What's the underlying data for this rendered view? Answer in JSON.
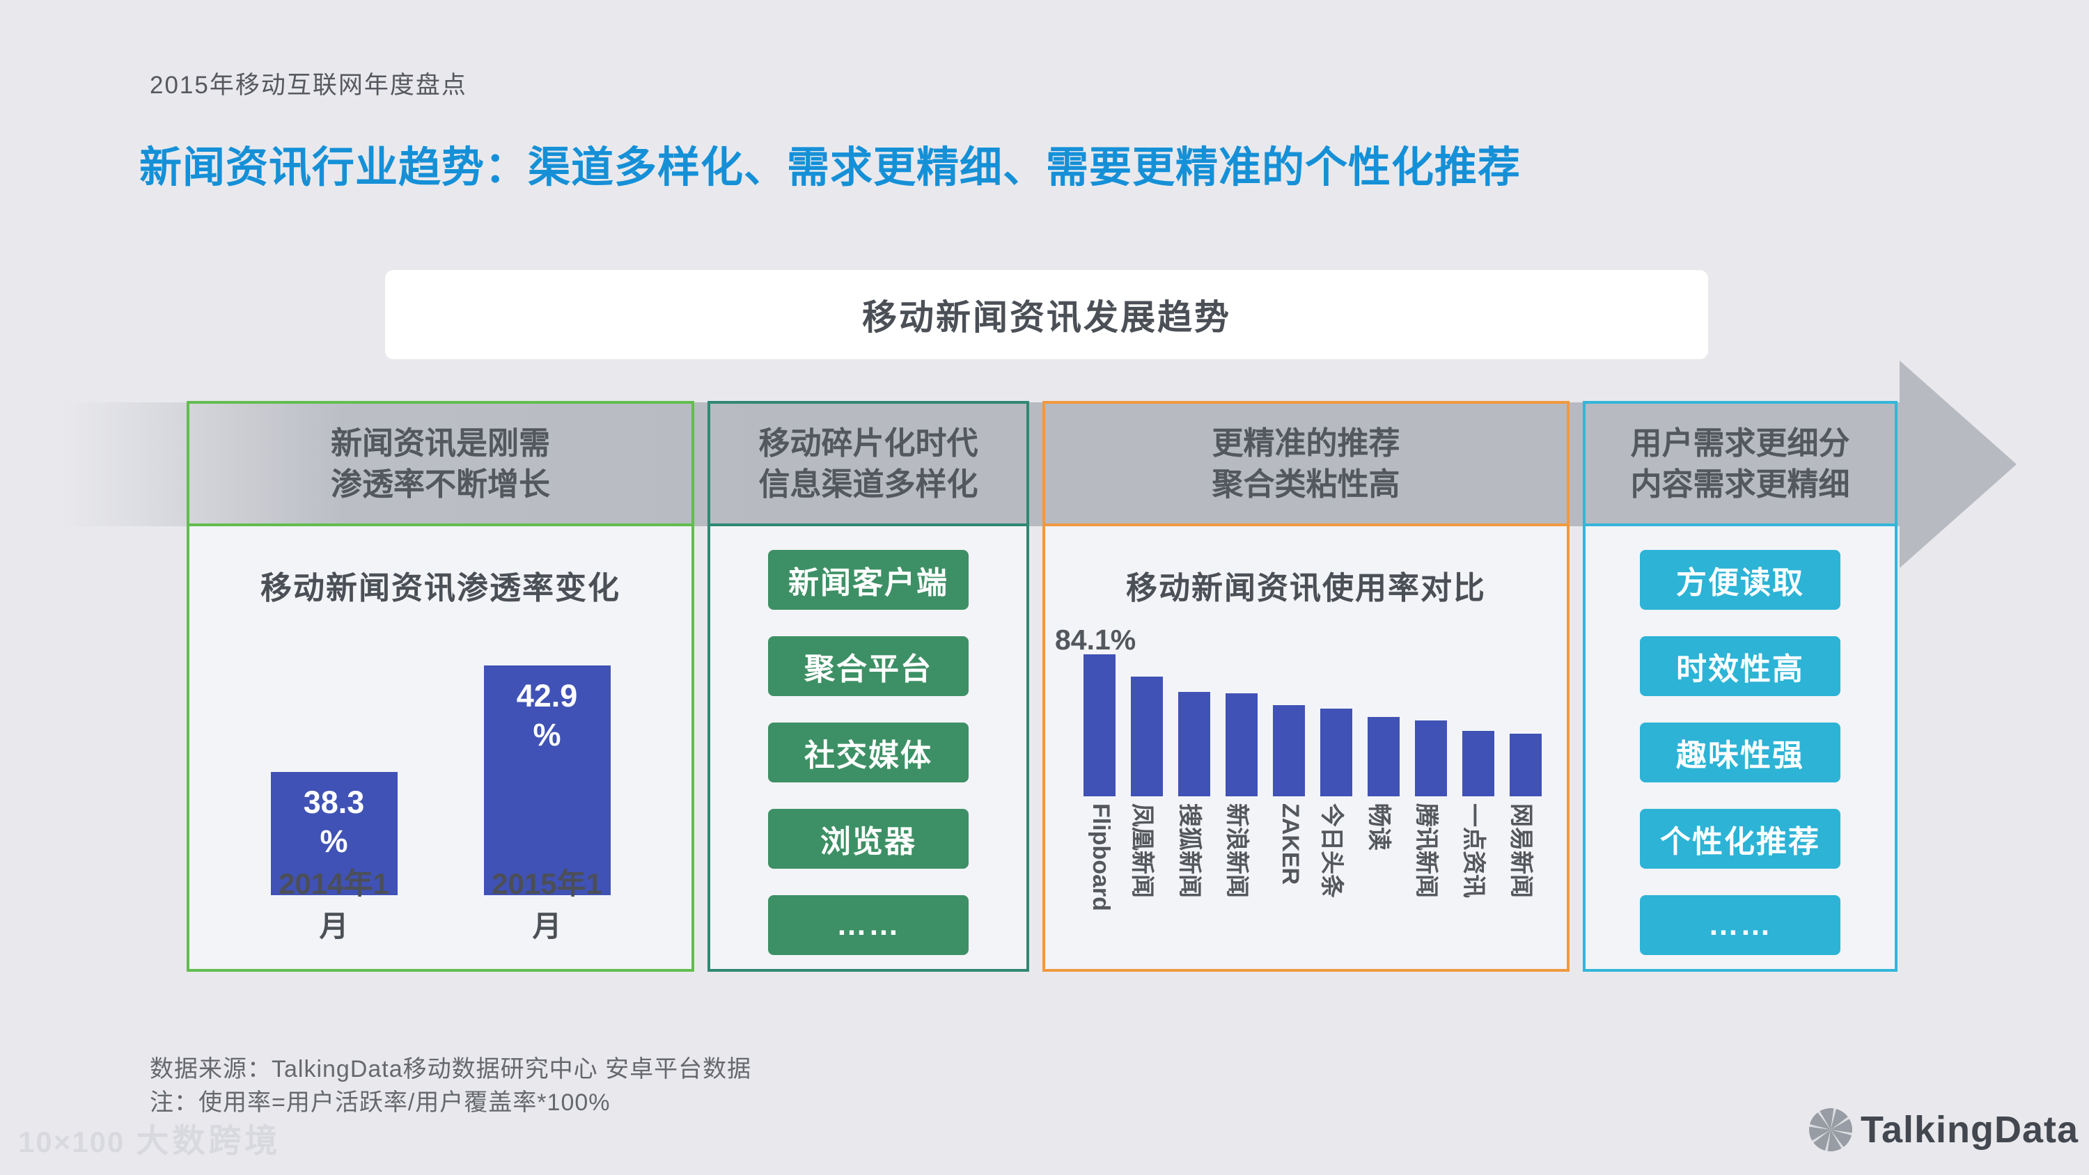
{
  "page": {
    "kicker": "2015年移动互联网年度盘点",
    "title": "新闻资讯行业趋势：渠道多样化、需求更精细、需要更精准的个性化推荐",
    "banner": "移动新闻资讯发展趋势",
    "source_line1": "数据来源：TalkingData移动数据研究中心 安卓平台数据",
    "source_line2": "注：使用率=用户活跃率/用户覆盖率*100%",
    "watermark": {
      "logo": "10×100",
      "text": "大数跨境"
    },
    "brand": "TalkingData"
  },
  "colors": {
    "background": "#e9e9ed",
    "title_blue": "#1590d7",
    "arrow_gray": "#b7bac1",
    "bar_blue": "#4052b5",
    "panel1_green": "#62bd4f",
    "panel2_teal": "#2f8873",
    "panel3_orange": "#f0993f",
    "panel4_cyan": "#33b6d9",
    "button_green": "#3d9065",
    "button_cyan": "#2cb3d6"
  },
  "panels": [
    {
      "id": "penetration",
      "accent": "#62bd4f",
      "header": [
        "新闻资讯是刚需",
        "渗透率不断增长"
      ]
    },
    {
      "id": "channels",
      "accent": "#2f8873",
      "header": [
        "移动碎片化时代",
        "信息渠道多样化"
      ],
      "buttons": [
        "新闻客户端",
        "聚合平台",
        "社交媒体",
        "浏览器",
        "……"
      ],
      "button_color": "#3d9065"
    },
    {
      "id": "usage",
      "accent": "#f0993f",
      "header": [
        "更精准的推荐",
        "聚合类粘性高"
      ]
    },
    {
      "id": "needs",
      "accent": "#33b6d9",
      "header": [
        "用户需求更细分",
        "内容需求更精细"
      ],
      "buttons": [
        "方便读取",
        "时效性高",
        "趣味性强",
        "个性化推荐",
        "……"
      ],
      "button_color": "#2cb3d6"
    }
  ],
  "chart_data": [
    {
      "type": "bar",
      "title": "移动新闻资讯渗透率变化",
      "categories": [
        "2014年1月",
        "2015年1月"
      ],
      "values": [
        38.3,
        42.9
      ],
      "unit": "%",
      "ylim": [
        33,
        45
      ],
      "bar_color": "#4052b5",
      "grid": false,
      "legend": "none"
    },
    {
      "type": "bar",
      "title": "移动新闻资讯使用率对比",
      "categories": [
        "Flipboard",
        "凤凰新闻",
        "搜狐新闻",
        "新浪新闻",
        "ZAKER",
        "今日头条",
        "畅读",
        "腾讯新闻",
        "一点资讯",
        "网易新闻"
      ],
      "values": [
        84.1,
        71,
        62,
        61,
        54,
        52,
        47,
        45,
        39,
        37
      ],
      "values_estimated": true,
      "data_label": "84.1%",
      "unit": "%",
      "ylim": [
        0,
        90
      ],
      "bar_color": "#4052b5",
      "grid": false,
      "legend": "none"
    }
  ]
}
